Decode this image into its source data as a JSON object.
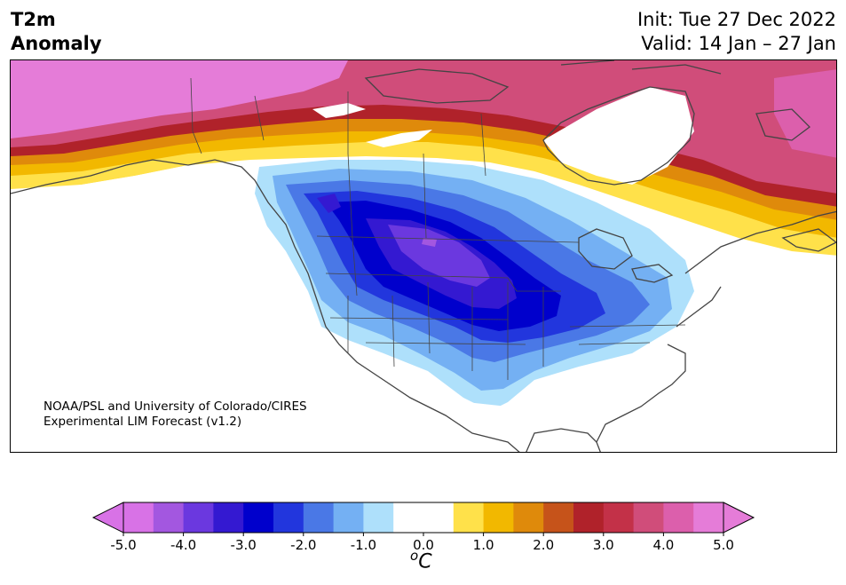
{
  "title": {
    "line1": "T2m",
    "line2": "Anomaly"
  },
  "header": {
    "init": "Init: Tue 27 Dec 2022",
    "valid": "Valid: 14 Jan – 27 Jan"
  },
  "credit": {
    "line1": "NOAA/PSL and University of Colorado/CIRES",
    "line2": "Experimental LIM Forecast (v1.2)"
  },
  "colorbar": {
    "colors": [
      "#d872e6",
      "#a357e0",
      "#6b38df",
      "#3419d1",
      "#0000cc",
      "#2236dd",
      "#4a78e6",
      "#74b0f3",
      "#aee0fb",
      "#ffffff",
      "#ffffff",
      "#ffe14a",
      "#f2b800",
      "#df8a0b",
      "#c6531a",
      "#b0222a",
      "#c33148",
      "#d04d7a",
      "#dc5fac",
      "#e57cd8"
    ],
    "under_color": "#d872e6",
    "over_color": "#e57cd8",
    "ticks": [
      "-5.0",
      "-4.0",
      "-3.0",
      "-2.0",
      "-1.0",
      "0.0",
      "1.0",
      "2.0",
      "3.0",
      "4.0",
      "5.0"
    ],
    "unit_sup": "o",
    "unit": "C"
  }
}
